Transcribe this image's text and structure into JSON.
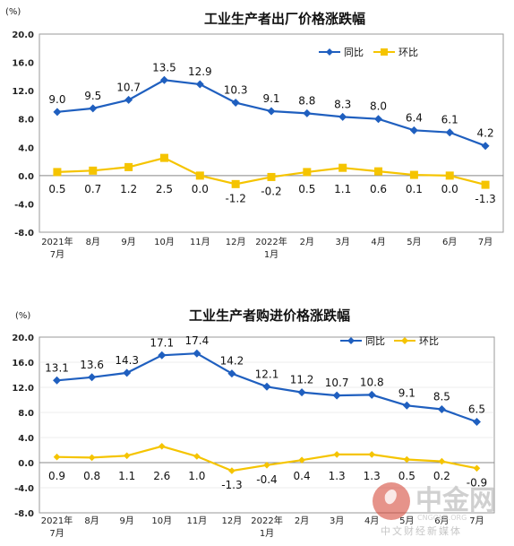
{
  "chart_data": [
    {
      "type": "line",
      "title": "工业生产者出厂价格涨跌幅",
      "unit": "(%)",
      "categories": [
        [
          "2021年",
          "7月"
        ],
        [
          "8月"
        ],
        [
          "9月"
        ],
        [
          "10月"
        ],
        [
          "11月"
        ],
        [
          "12月"
        ],
        [
          "2022年",
          "1月"
        ],
        [
          "2月"
        ],
        [
          "3月"
        ],
        [
          "4月"
        ],
        [
          "5月"
        ],
        [
          "6月"
        ],
        [
          "7月"
        ]
      ],
      "ylim": [
        -8.0,
        20.0
      ],
      "yticks": [
        "20.0",
        "16.0",
        "12.0",
        "8.0",
        "4.0",
        "0.0",
        "-4.0",
        "-8.0"
      ],
      "ytick_values": [
        20,
        16,
        12,
        8,
        4,
        0,
        -4,
        -8
      ],
      "grid": false,
      "legend_position": "top-right",
      "series": [
        {
          "name": "同比",
          "color": "#1f5fbf",
          "marker": "diamond",
          "values": [
            9.0,
            9.5,
            10.7,
            13.5,
            12.9,
            10.3,
            9.1,
            8.8,
            8.3,
            8.0,
            6.4,
            6.1,
            4.2
          ],
          "labels": [
            "9.0",
            "9.5",
            "10.7",
            "13.5",
            "12.9",
            "10.3",
            "9.1",
            "8.8",
            "8.3",
            "8.0",
            "6.4",
            "6.1",
            "4.2"
          ]
        },
        {
          "name": "环比",
          "color": "#f5c400",
          "marker": "square",
          "values": [
            0.5,
            0.7,
            1.2,
            2.5,
            0.0,
            -1.2,
            -0.2,
            0.5,
            1.1,
            0.6,
            0.1,
            0.0,
            -1.3
          ],
          "labels": [
            "0.5",
            "0.7",
            "1.2",
            "2.5",
            "0.0",
            "-1.2",
            "-0.2",
            "0.5",
            "1.1",
            "0.6",
            "0.1",
            "0.0",
            "-1.3"
          ]
        }
      ]
    },
    {
      "type": "line",
      "title": "工业生产者购进价格涨跌幅",
      "unit": "(%)",
      "categories": [
        [
          "2021年",
          "7月"
        ],
        [
          "8月"
        ],
        [
          "9月"
        ],
        [
          "10月"
        ],
        [
          "11月"
        ],
        [
          "12月"
        ],
        [
          "2022年",
          "1月"
        ],
        [
          "2月"
        ],
        [
          "3月"
        ],
        [
          "4月"
        ],
        [
          "5月"
        ],
        [
          "6月"
        ],
        [
          "7月"
        ]
      ],
      "ylim": [
        -8.0,
        20.0
      ],
      "yticks": [
        "20.0",
        "16.0",
        "12.0",
        "8.0",
        "4.0",
        "0.0",
        "-4.0",
        "-8.0"
      ],
      "ytick_values": [
        20,
        16,
        12,
        8,
        4,
        0,
        -4,
        -8
      ],
      "grid": true,
      "legend_position": "top-right",
      "series": [
        {
          "name": "同比",
          "color": "#1f5fbf",
          "marker": "diamond",
          "values": [
            13.1,
            13.6,
            14.3,
            17.1,
            17.4,
            14.2,
            12.1,
            11.2,
            10.7,
            10.8,
            9.1,
            8.5,
            6.5
          ],
          "labels": [
            "13.1",
            "13.6",
            "14.3",
            "17.1",
            "17.4",
            "14.2",
            "12.1",
            "11.2",
            "10.7",
            "10.8",
            "9.1",
            "8.5",
            "6.5"
          ]
        },
        {
          "name": "环比",
          "color": "#f5c400",
          "marker": "diamond",
          "values": [
            0.9,
            0.8,
            1.1,
            2.6,
            1.0,
            -1.3,
            -0.4,
            0.4,
            1.3,
            1.3,
            0.5,
            0.2,
            -0.9
          ],
          "labels": [
            "0.9",
            "0.8",
            "1.1",
            "2.6",
            "1.0",
            "-1.3",
            "-0.4",
            "0.4",
            "1.3",
            "1.3",
            "0.5",
            "0.2",
            "-0.9"
          ]
        }
      ]
    }
  ],
  "watermark": {
    "brand": "中金网",
    "tagline": "中文财经新媒体",
    "url": "CNGOLD.ORG",
    "logo_color": "#d23a2a"
  }
}
